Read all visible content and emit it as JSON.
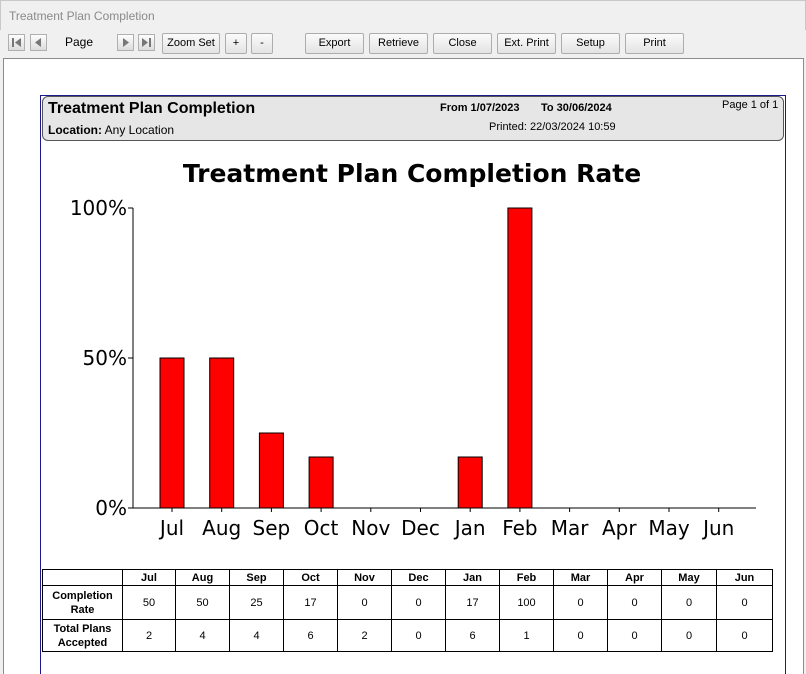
{
  "window": {
    "title": "Treatment Plan Completion"
  },
  "toolbar": {
    "page_label": "Page",
    "buttons": {
      "zoom_set": "Zoom Set",
      "zoom_in": "+",
      "zoom_out": "-",
      "export": "Export",
      "retrieve": "Retrieve",
      "close": "Close",
      "ext_print": "Ext. Print",
      "setup": "Setup",
      "print": "Print"
    }
  },
  "report": {
    "title": "Treatment Plan Completion",
    "location_label": "Location:",
    "location_value": "Any Location",
    "from": "From 1/07/2023",
    "to": "To 30/06/2024",
    "printed": "Printed: 22/03/2024 10:59",
    "page_info": "Page 1 of 1"
  },
  "chart_data": {
    "type": "bar",
    "title": "Treatment Plan Completion Rate",
    "categories": [
      "Jul",
      "Aug",
      "Sep",
      "Oct",
      "Nov",
      "Dec",
      "Jan",
      "Feb",
      "Mar",
      "Apr",
      "May",
      "Jun"
    ],
    "values": [
      50,
      50,
      25,
      17,
      0,
      0,
      17,
      100,
      0,
      0,
      0,
      0
    ],
    "yticks": [
      "0%",
      "50%",
      "100%"
    ],
    "ylim": [
      0,
      100
    ],
    "bar_color": "#ff0000",
    "grid": false
  },
  "table": {
    "headers": [
      "Jul",
      "Aug",
      "Sep",
      "Oct",
      "Nov",
      "Dec",
      "Jan",
      "Feb",
      "Mar",
      "Apr",
      "May",
      "Jun"
    ],
    "rows": [
      {
        "label": "Completion Rate",
        "values": [
          "50",
          "50",
          "25",
          "17",
          "0",
          "0",
          "17",
          "100",
          "0",
          "0",
          "0",
          "0"
        ]
      },
      {
        "label": "Total Plans Accepted",
        "values": [
          "2",
          "4",
          "4",
          "6",
          "2",
          "0",
          "6",
          "1",
          "0",
          "0",
          "0",
          "0"
        ]
      }
    ]
  }
}
